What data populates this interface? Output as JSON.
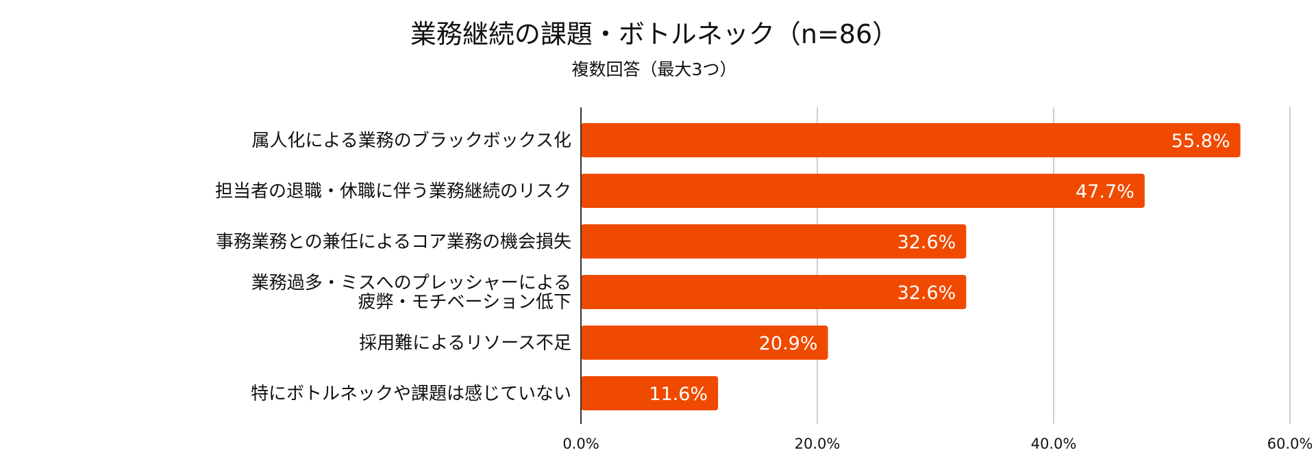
{
  "chart_data": {
    "type": "bar",
    "orientation": "horizontal",
    "title": "業務継続の課題・ボトルネック（n=86）",
    "subtitle": "複数回答（最大3つ）",
    "categories": [
      [
        "属人化による業務のブラックボックス化"
      ],
      [
        "担当者の退職・休職に伴う業務継続のリスク"
      ],
      [
        "事務業務との兼任によるコア業務の機会損失"
      ],
      [
        "業務過多・ミスへのプレッシャーによる",
        "疲弊・モチベーション低下"
      ],
      [
        "採用難によるリソース不足"
      ],
      [
        "特にボトルネックや課題は感じていない"
      ]
    ],
    "values": [
      55.8,
      47.7,
      32.6,
      32.6,
      20.9,
      11.6
    ],
    "value_labels": [
      "55.8%",
      "47.7%",
      "32.6%",
      "32.6%",
      "20.9%",
      "11.6%"
    ],
    "xlim": [
      0,
      60
    ],
    "x_ticks": [
      0,
      20,
      40,
      60
    ],
    "x_tick_labels": [
      "0.0%",
      "20.0%",
      "40.0%",
      "60.0%"
    ],
    "grid": "vertical",
    "legend": "none",
    "bar_color": "#F04A00",
    "grid_color": "#CCCCCC",
    "axis_color": "#333333"
  }
}
